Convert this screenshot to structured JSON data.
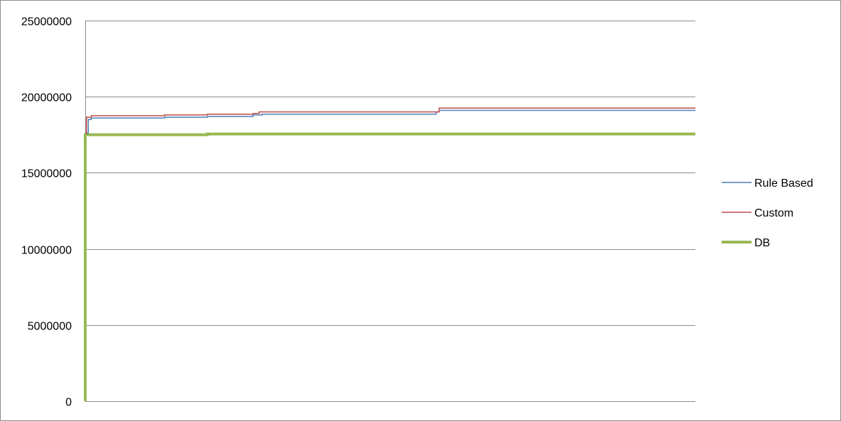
{
  "chart_data": {
    "type": "line",
    "title": "",
    "xlabel": "",
    "ylabel": "",
    "ylim": [
      0,
      25000000
    ],
    "yticks": [
      0,
      5000000,
      10000000,
      15000000,
      20000000,
      25000000
    ],
    "x_range": [
      0,
      100
    ],
    "grid": "horizontal",
    "legend": "right",
    "series": [
      {
        "name": "Rule Based",
        "color": "#4a7ebb",
        "step": true,
        "points": [
          [
            0,
            17600000
          ],
          [
            0.5,
            18500000
          ],
          [
            1,
            18600000
          ],
          [
            13,
            18650000
          ],
          [
            20,
            18700000
          ],
          [
            27.5,
            18800000
          ],
          [
            29,
            18850000
          ],
          [
            57.5,
            19000000
          ],
          [
            58,
            19100000
          ],
          [
            100,
            19100000
          ]
        ]
      },
      {
        "name": "Custom",
        "color": "#be4b48",
        "step": true,
        "points": [
          [
            0,
            17600000
          ],
          [
            0.2,
            18650000
          ],
          [
            1,
            18750000
          ],
          [
            13,
            18800000
          ],
          [
            20,
            18850000
          ],
          [
            27.5,
            18900000
          ],
          [
            28.5,
            19000000
          ],
          [
            58,
            19250000
          ],
          [
            100,
            19250000
          ]
        ]
      },
      {
        "name": "DB",
        "color": "#98b954",
        "step": true,
        "points": [
          [
            0,
            0
          ],
          [
            0,
            17500000
          ],
          [
            20,
            17550000
          ],
          [
            100,
            17550000
          ]
        ]
      }
    ]
  }
}
